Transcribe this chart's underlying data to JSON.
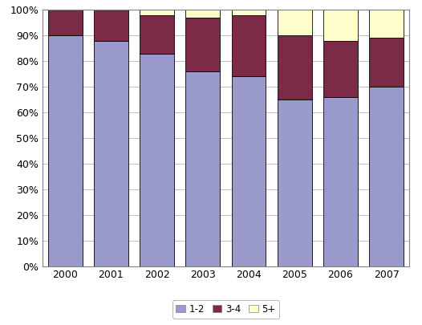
{
  "years": [
    "2000",
    "2001",
    "2002",
    "2003",
    "2004",
    "2005",
    "2006",
    "2007"
  ],
  "series": {
    "1-2": [
      90,
      88,
      83,
      76,
      74,
      65,
      66,
      70
    ],
    "3-4": [
      10,
      12,
      15,
      21,
      24,
      25,
      22,
      19
    ],
    "5+": [
      0,
      0,
      2,
      3,
      2,
      10,
      12,
      11
    ]
  },
  "colors": {
    "1-2": "#9999CC",
    "3-4": "#7B2B47",
    "5+": "#FFFFCC"
  },
  "legend_labels": [
    "1-2",
    "3-4",
    "5+"
  ],
  "ylim": [
    0,
    100
  ],
  "yticks": [
    0,
    10,
    20,
    30,
    40,
    50,
    60,
    70,
    80,
    90,
    100
  ],
  "ytick_labels": [
    "0%",
    "10%",
    "20%",
    "30%",
    "40%",
    "50%",
    "60%",
    "70%",
    "80%",
    "90%",
    "100%"
  ],
  "background_color": "#FFFFFF",
  "grid_color": "#C0C0C0",
  "bar_width": 0.75,
  "edge_color": "#000000"
}
